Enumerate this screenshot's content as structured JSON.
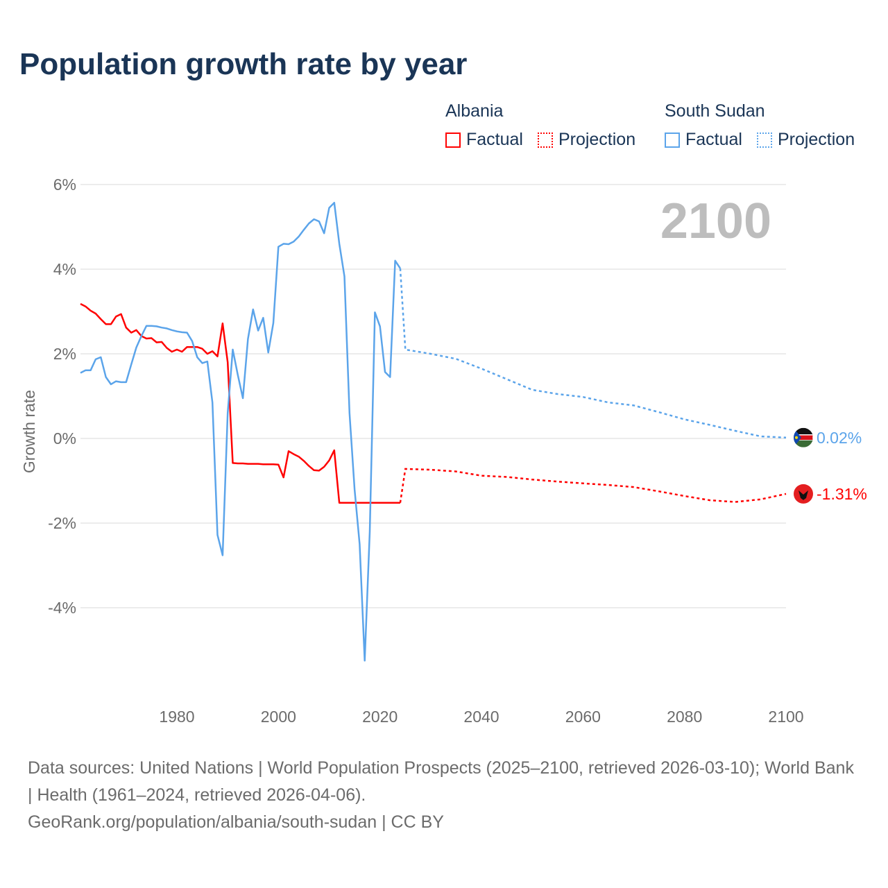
{
  "title": "Population growth rate by year",
  "legend": {
    "groups": [
      {
        "name": "Albania",
        "factual_label": "Factual",
        "projection_label": "Projection",
        "color": "#ff0000"
      },
      {
        "name": "South Sudan",
        "factual_label": "Factual",
        "projection_label": "Projection",
        "color": "#5ba4ea"
      }
    ]
  },
  "chart_data": {
    "type": "line",
    "title": "Population growth rate by year",
    "xlabel": "",
    "ylabel": "Growth rate",
    "xlim": [
      1961,
      2100
    ],
    "ylim": [
      -5.5,
      6.5
    ],
    "x_ticks": [
      1980,
      2000,
      2020,
      2040,
      2060,
      2080,
      2100
    ],
    "y_ticks": [
      6,
      4,
      2,
      0,
      -2,
      -4
    ],
    "y_tick_labels": [
      "6%",
      "4%",
      "2%",
      "0%",
      "-2%",
      "-4%"
    ],
    "grid": true,
    "year_overlay": "2100",
    "series": [
      {
        "name": "Albania",
        "color": "#ff0000",
        "end_label": "-1.31%",
        "factual": {
          "x": [
            1961,
            1962,
            1963,
            1964,
            1965,
            1966,
            1967,
            1968,
            1969,
            1970,
            1971,
            1972,
            1973,
            1974,
            1975,
            1976,
            1977,
            1978,
            1979,
            1980,
            1981,
            1982,
            1983,
            1984,
            1985,
            1986,
            1987,
            1988,
            1989,
            1990,
            1991,
            1992,
            1993,
            1994,
            1995,
            1996,
            1997,
            1998,
            1999,
            2000,
            2001,
            2002,
            2003,
            2004,
            2005,
            2006,
            2007,
            2008,
            2009,
            2010,
            2011,
            2012,
            2013,
            2014,
            2015,
            2016,
            2017,
            2018,
            2019,
            2020,
            2021,
            2022,
            2023,
            2024
          ],
          "y": [
            3.18,
            3.12,
            3.02,
            2.95,
            2.82,
            2.7,
            2.7,
            2.88,
            2.94,
            2.62,
            2.5,
            2.56,
            2.42,
            2.36,
            2.37,
            2.27,
            2.28,
            2.14,
            2.05,
            2.1,
            2.05,
            2.16,
            2.16,
            2.16,
            2.12,
            2.0,
            2.06,
            1.94,
            2.72,
            1.8,
            -0.58,
            -0.59,
            -0.59,
            -0.6,
            -0.6,
            -0.6,
            -0.61,
            -0.61,
            -0.61,
            -0.62,
            -0.92,
            -0.3,
            -0.37,
            -0.43,
            -0.53,
            -0.65,
            -0.75,
            -0.76,
            -0.67,
            -0.52,
            -0.28,
            -1.52,
            -1.52,
            -1.52,
            -1.52,
            -1.52,
            -1.52,
            -1.52,
            -1.52,
            -1.52,
            -1.52,
            -1.52,
            -1.52,
            -1.52
          ]
        },
        "projection": {
          "x": [
            2024,
            2025,
            2030,
            2035,
            2040,
            2045,
            2050,
            2055,
            2060,
            2065,
            2070,
            2075,
            2080,
            2085,
            2090,
            2095,
            2100
          ],
          "y": [
            -1.52,
            -0.72,
            -0.74,
            -0.78,
            -0.88,
            -0.91,
            -0.97,
            -1.02,
            -1.06,
            -1.1,
            -1.15,
            -1.25,
            -1.36,
            -1.46,
            -1.5,
            -1.44,
            -1.31
          ]
        }
      },
      {
        "name": "South Sudan",
        "color": "#5ba4ea",
        "end_label": "0.02%",
        "factual": {
          "x": [
            1961,
            1962,
            1963,
            1964,
            1965,
            1966,
            1967,
            1968,
            1969,
            1970,
            1971,
            1972,
            1973,
            1974,
            1975,
            1976,
            1977,
            1978,
            1979,
            1980,
            1981,
            1982,
            1983,
            1984,
            1985,
            1986,
            1987,
            1988,
            1989,
            1990,
            1991,
            1992,
            1993,
            1994,
            1995,
            1996,
            1997,
            1998,
            1999,
            2000,
            2001,
            2002,
            2003,
            2004,
            2005,
            2006,
            2007,
            2008,
            2009,
            2010,
            2011,
            2012,
            2013,
            2014,
            2015,
            2016,
            2017,
            2018,
            2019,
            2020,
            2021,
            2022,
            2023,
            2024
          ],
          "y": [
            1.55,
            1.61,
            1.61,
            1.87,
            1.92,
            1.45,
            1.28,
            1.35,
            1.33,
            1.33,
            1.75,
            2.15,
            2.42,
            2.66,
            2.66,
            2.65,
            2.62,
            2.6,
            2.56,
            2.53,
            2.51,
            2.5,
            2.3,
            1.92,
            1.78,
            1.82,
            0.85,
            -2.28,
            -2.76,
            0.6,
            2.1,
            1.5,
            0.95,
            2.35,
            3.05,
            2.55,
            2.85,
            2.03,
            2.73,
            4.53,
            4.6,
            4.59,
            4.65,
            4.77,
            4.93,
            5.08,
            5.18,
            5.13,
            4.85,
            5.45,
            5.57,
            4.6,
            3.83,
            0.6,
            -1.2,
            -2.5,
            -5.25,
            -2.2,
            2.98,
            2.65,
            1.57,
            1.45,
            4.2,
            4.02
          ]
        },
        "projection": {
          "x": [
            2024,
            2025,
            2030,
            2035,
            2040,
            2045,
            2050,
            2055,
            2060,
            2065,
            2070,
            2075,
            2080,
            2085,
            2090,
            2095,
            2100
          ],
          "y": [
            4.02,
            2.1,
            2.0,
            1.88,
            1.65,
            1.4,
            1.15,
            1.05,
            0.98,
            0.85,
            0.78,
            0.62,
            0.45,
            0.32,
            0.18,
            0.05,
            0.02
          ]
        }
      }
    ]
  },
  "footer": {
    "sources": "Data sources: United Nations | World Population Prospects (2025–2100, retrieved 2026-03-10); World Bank | Health (1961–2024, retrieved 2026-04-06).",
    "credit": "GeoRank.org/population/albania/south-sudan | CC BY"
  }
}
